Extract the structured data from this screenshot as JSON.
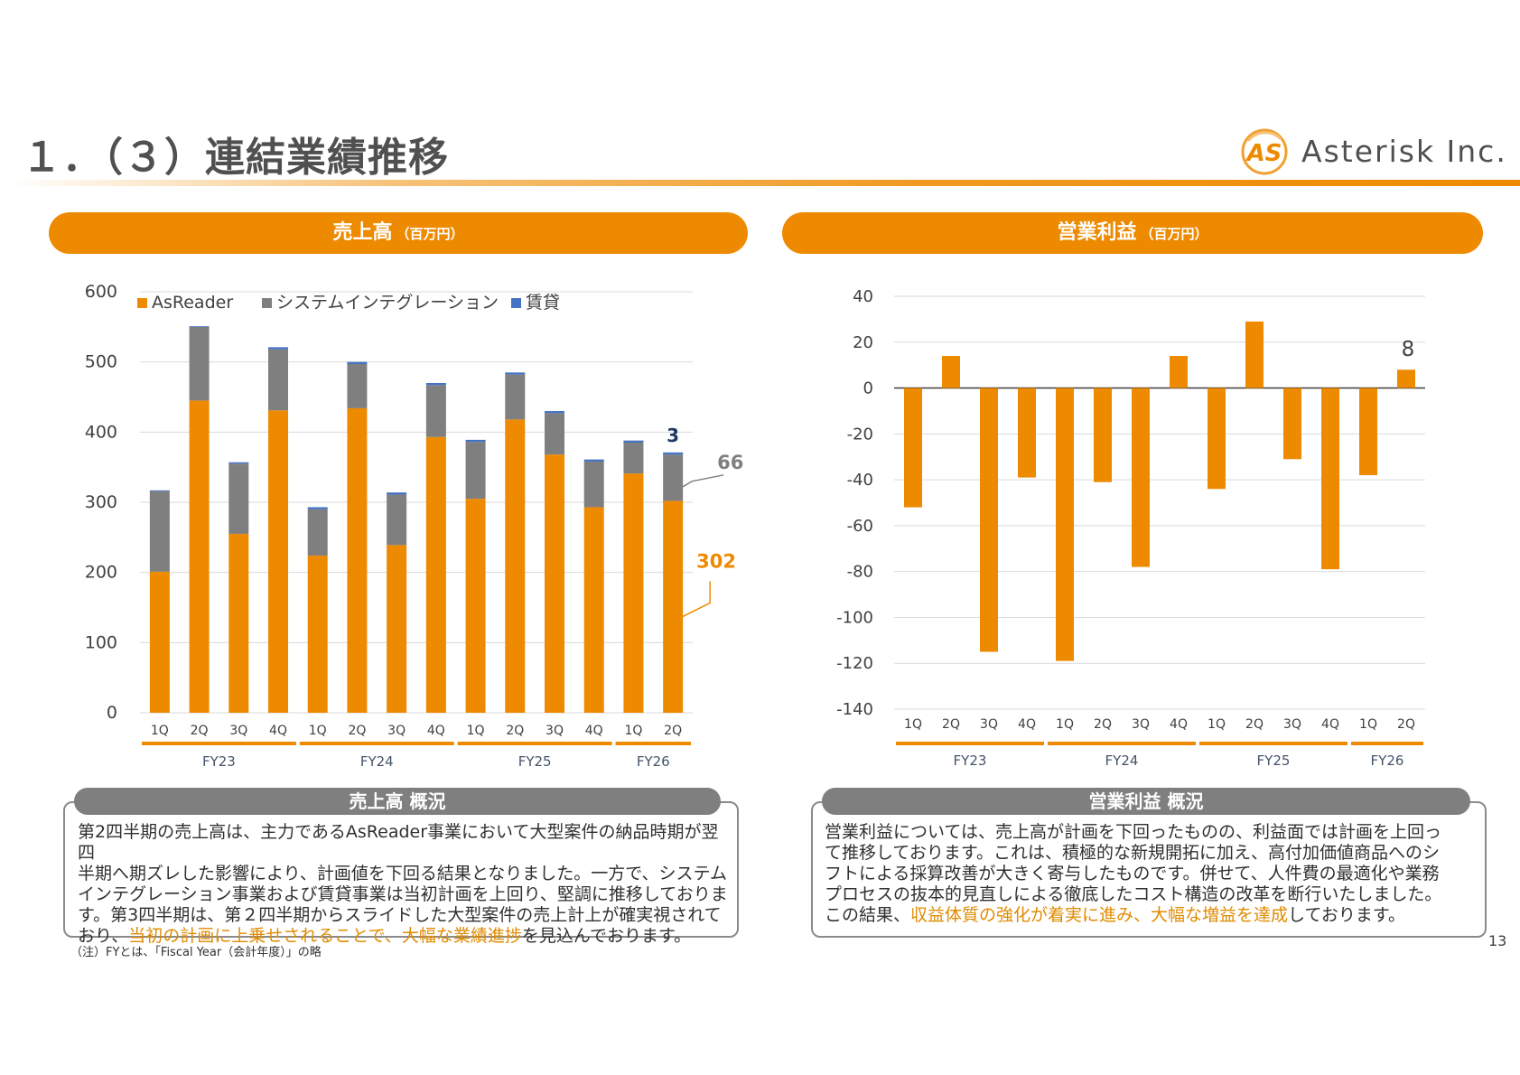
{
  "header": {
    "title": "１．（３）連結業績推移",
    "logo_mark": "AS",
    "company": "Asterisk Inc."
  },
  "sales_panel": {
    "heading": "売上高",
    "unit": "（百万円）"
  },
  "profit_panel": {
    "heading": "営業利益",
    "unit": "（百万円）"
  },
  "chart_data": [
    {
      "type": "bar",
      "stacked": true,
      "title": "",
      "categories": [
        "1Q",
        "2Q",
        "3Q",
        "4Q",
        "1Q",
        "2Q",
        "3Q",
        "4Q",
        "1Q",
        "2Q",
        "3Q",
        "4Q",
        "1Q",
        "2Q"
      ],
      "groups": [
        {
          "label": "FY23",
          "count": 4
        },
        {
          "label": "FY24",
          "count": 4
        },
        {
          "label": "FY25",
          "count": 4
        },
        {
          "label": "FY26",
          "count": 2
        }
      ],
      "series": [
        {
          "name": "AsReader",
          "color": "#ee8a00",
          "values": [
            201,
            445,
            255,
            431,
            224,
            434,
            239,
            393,
            305,
            418,
            368,
            293,
            341,
            302
          ]
        },
        {
          "name": "システムインテグレーション",
          "color": "#7f7f7f",
          "values": [
            115,
            105,
            100,
            87,
            66,
            63,
            72,
            74,
            81,
            64,
            59,
            65,
            44,
            66
          ]
        },
        {
          "name": "賃貸",
          "color": "#4472c4",
          "values": [
            1,
            1,
            2,
            3,
            3,
            3,
            3,
            3,
            3,
            3,
            3,
            3,
            3,
            3
          ]
        }
      ],
      "ylim": [
        0,
        600
      ],
      "yticks": [
        0,
        100,
        200,
        300,
        400,
        500,
        600
      ],
      "grid": true,
      "legend": "top-left",
      "annotations": [
        {
          "text": "3",
          "series": "賃貸",
          "color": "#1f3864"
        },
        {
          "text": "66",
          "series": "システムインテグレーション",
          "color": "#7f7f7f"
        },
        {
          "text": "302",
          "series": "AsReader",
          "color": "#ee8a00"
        }
      ]
    },
    {
      "type": "bar",
      "title": "",
      "categories": [
        "1Q",
        "2Q",
        "3Q",
        "4Q",
        "1Q",
        "2Q",
        "3Q",
        "4Q",
        "1Q",
        "2Q",
        "3Q",
        "4Q",
        "1Q",
        "2Q"
      ],
      "groups": [
        {
          "label": "FY23",
          "count": 4
        },
        {
          "label": "FY24",
          "count": 4
        },
        {
          "label": "FY25",
          "count": 4
        },
        {
          "label": "FY26",
          "count": 2
        }
      ],
      "series": [
        {
          "color": "#ee8a00",
          "values": [
            -52,
            14,
            -115,
            -39,
            -119,
            -41,
            -78,
            14,
            -44,
            29,
            -31,
            -79,
            -38,
            8
          ]
        }
      ],
      "ylim": [
        -140,
        40
      ],
      "yticks": [
        40,
        20,
        0,
        -20,
        -40,
        -60,
        -80,
        -100,
        -120,
        -140
      ],
      "grid": true,
      "annotations": [
        {
          "text": "8",
          "color": "#404040"
        }
      ]
    }
  ],
  "sales_summary": {
    "heading": "売上高 概況",
    "lines": [
      "第2四半期の売上高は、主力であるAsReader事業において大型案件の納品時期が翌四",
      "半期へ期ズレした影響により、計画値を下回る結果となりました。一方で、システム",
      "インテグレーション事業および賃貸事業は当初計画を上回り、堅調に推移しておりま",
      "す。第3四半期は、第２四半期からスライドした大型案件の売上計上が確実視されて"
    ],
    "last_prefix": "おり、",
    "last_highlight": "当初の計画に上乗せされることで、大幅な業績進捗",
    "last_suffix": "を見込んでおります。"
  },
  "profit_summary": {
    "heading": "営業利益 概況",
    "lines": [
      "営業利益については、売上高が計画を下回ったものの、利益面では計画を上回っ",
      "て推移しております。これは、積極的な新規開拓に加え、高付加価値商品へのシ",
      "フトによる採算改善が大きく寄与したものです。併せて、人件費の最適化や業務",
      "プロセスの抜本的見直しによる徹底したコスト構造の改革を断行いたしました。"
    ],
    "last_prefix": "この結果、",
    "last_highlight": "収益体質の強化が着実に進み、大幅な増益を達成",
    "last_suffix": "しております。"
  },
  "footnote": "（注）FYとは、「Fiscal Year（会計年度）」の略",
  "page_number": "13"
}
